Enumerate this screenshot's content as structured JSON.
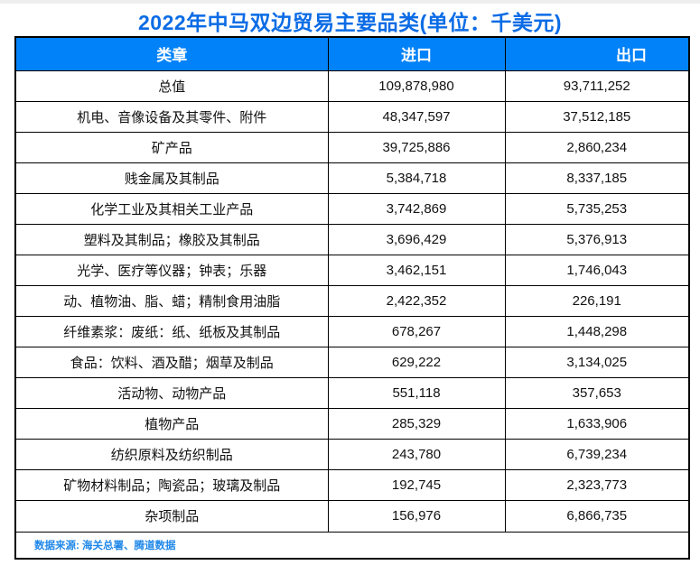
{
  "title": "2022年中马双边贸易主要品类(单位：千美元)",
  "footer": {
    "source": "数据来源: 海关总署、腾道数据"
  },
  "colors": {
    "header_bg": "#0282f8",
    "title": "#0b6ce5",
    "source": "#1f87e8",
    "border": "#000000"
  },
  "table": {
    "headers": [
      "类章",
      "进口",
      "出口"
    ],
    "rows": [
      {
        "category": "总值",
        "import": "109,878,980",
        "export": "93,711,252"
      },
      {
        "category": "机电、音像设备及其零件、附件",
        "import": "48,347,597",
        "export": "37,512,185"
      },
      {
        "category": "矿产品",
        "import": "39,725,886",
        "export": "2,860,234"
      },
      {
        "category": "贱金属及其制品",
        "import": "5,384,718",
        "export": "8,337,185"
      },
      {
        "category": "化学工业及其相关工业产品",
        "import": "3,742,869",
        "export": "5,735,253"
      },
      {
        "category": "塑料及其制品；橡胶及其制品",
        "import": "3,696,429",
        "export": "5,376,913"
      },
      {
        "category": "光学、医疗等仪器；钟表；乐器",
        "import": "3,462,151",
        "export": "1,746,043"
      },
      {
        "category": "动、植物油、脂、蜡；精制食用油脂",
        "import": "2,422,352",
        "export": "226,191"
      },
      {
        "category": "纤维素浆：废纸：纸、纸板及其制品",
        "import": "678,267",
        "export": "1,448,298"
      },
      {
        "category": "食品：饮料、酒及醋；烟草及制品",
        "import": "629,222",
        "export": "3,134,025"
      },
      {
        "category": "活动物、动物产品",
        "import": "551,118",
        "export": "357,653"
      },
      {
        "category": "植物产品",
        "import": "285,329",
        "export": "1,633,906"
      },
      {
        "category": "纺织原料及纺织制品",
        "import": "243,780",
        "export": "6,739,234"
      },
      {
        "category": "矿物材料制品；陶瓷品；玻璃及制品",
        "import": "192,745",
        "export": "2,323,773"
      },
      {
        "category": "杂项制品",
        "import": "156,976",
        "export": "6,866,735"
      }
    ]
  },
  "chart_data": {
    "type": "table",
    "title": "2022年中马双边贸易主要品类(单位：千美元)",
    "columns": [
      "类章",
      "进口",
      "出口"
    ],
    "unit": "千美元",
    "rows": [
      [
        "总值",
        109878980,
        93711252
      ],
      [
        "机电、音像设备及其零件、附件",
        48347597,
        37512185
      ],
      [
        "矿产品",
        39725886,
        2860234
      ],
      [
        "贱金属及其制品",
        5384718,
        8337185
      ],
      [
        "化学工业及其相关工业产品",
        3742869,
        5735253
      ],
      [
        "塑料及其制品；橡胶及其制品",
        3696429,
        5376913
      ],
      [
        "光学、医疗等仪器；钟表；乐器",
        3462151,
        1746043
      ],
      [
        "动、植物油、脂、蜡；精制食用油脂",
        2422352,
        226191
      ],
      [
        "纤维素浆：废纸：纸、纸板及其制品",
        678267,
        1448298
      ],
      [
        "食品：饮料、酒及醋；烟草及制品",
        629222,
        3134025
      ],
      [
        "活动物、动物产品",
        551118,
        357653
      ],
      [
        "植物产品",
        285329,
        1633906
      ],
      [
        "纺织原料及纺织制品",
        243780,
        6739234
      ],
      [
        "矿物材料制品；陶瓷品；玻璃及制品",
        192745,
        2323773
      ],
      [
        "杂项制品",
        156976,
        6866735
      ]
    ],
    "source_note": "数据来源: 海关总署、腾道数据"
  }
}
